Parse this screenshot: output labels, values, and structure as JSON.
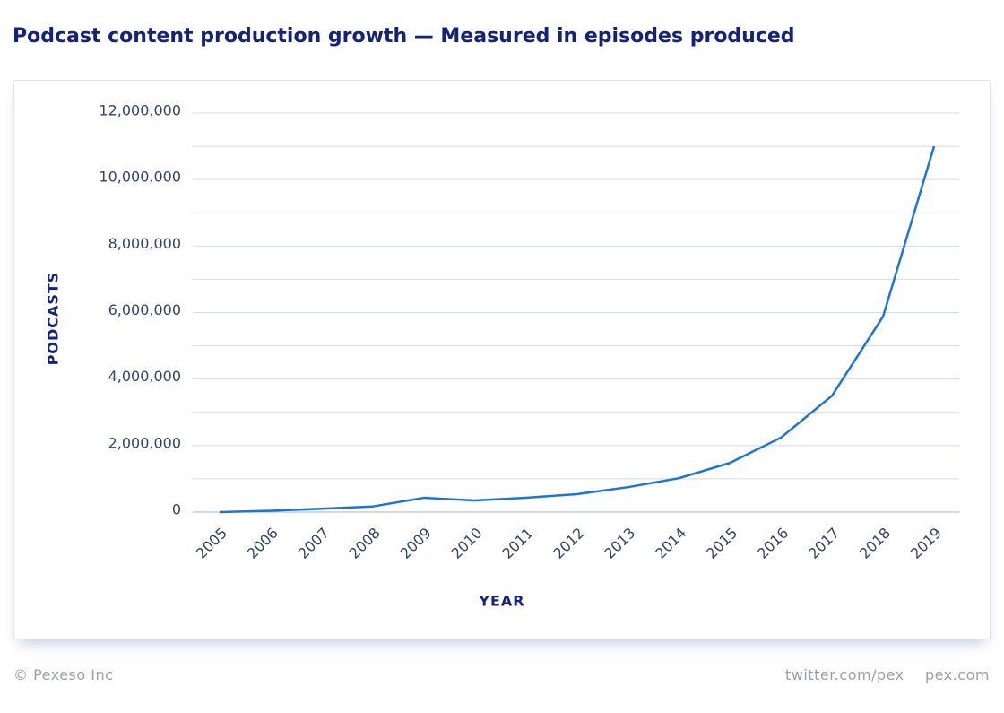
{
  "chart_data": {
    "type": "line",
    "title": "Podcast content production growth  — Measured in episodes produced",
    "y_label": "PODCASTS",
    "x_label": "YEAR",
    "categories": [
      "2005",
      "2006",
      "2007",
      "2008",
      "2009",
      "2010",
      "2011",
      "2012",
      "2013",
      "2014",
      "2015",
      "2016",
      "2017",
      "2018",
      "2019"
    ],
    "series": [
      {
        "name": "Podcasts",
        "color": "#1e74d6",
        "values": [
          0,
          40000,
          100000,
          170000,
          430000,
          350000,
          430000,
          540000,
          750000,
          1020000,
          1480000,
          2240000,
          3500000,
          5880000,
          11000000
        ]
      }
    ],
    "ylim": [
      0,
      12000000
    ],
    "yticks": [
      {
        "value": 0,
        "label": "0"
      },
      {
        "value": 2000000,
        "label": "2,000,000"
      },
      {
        "value": 4000000,
        "label": "4,000,000"
      },
      {
        "value": 6000000,
        "label": "6,000,000"
      },
      {
        "value": 8000000,
        "label": "8,000,000"
      },
      {
        "value": 10000000,
        "label": "10,000,000"
      },
      {
        "value": 12000000,
        "label": "12,000,000"
      }
    ],
    "grid_lines": [
      1000000,
      3000000,
      5000000,
      7000000,
      9000000,
      11000000
    ],
    "grid": true,
    "legend": false
  },
  "footer": {
    "copyright": "© Pexeso Inc",
    "links": [
      "twitter.com/pex",
      "pex.com"
    ]
  }
}
